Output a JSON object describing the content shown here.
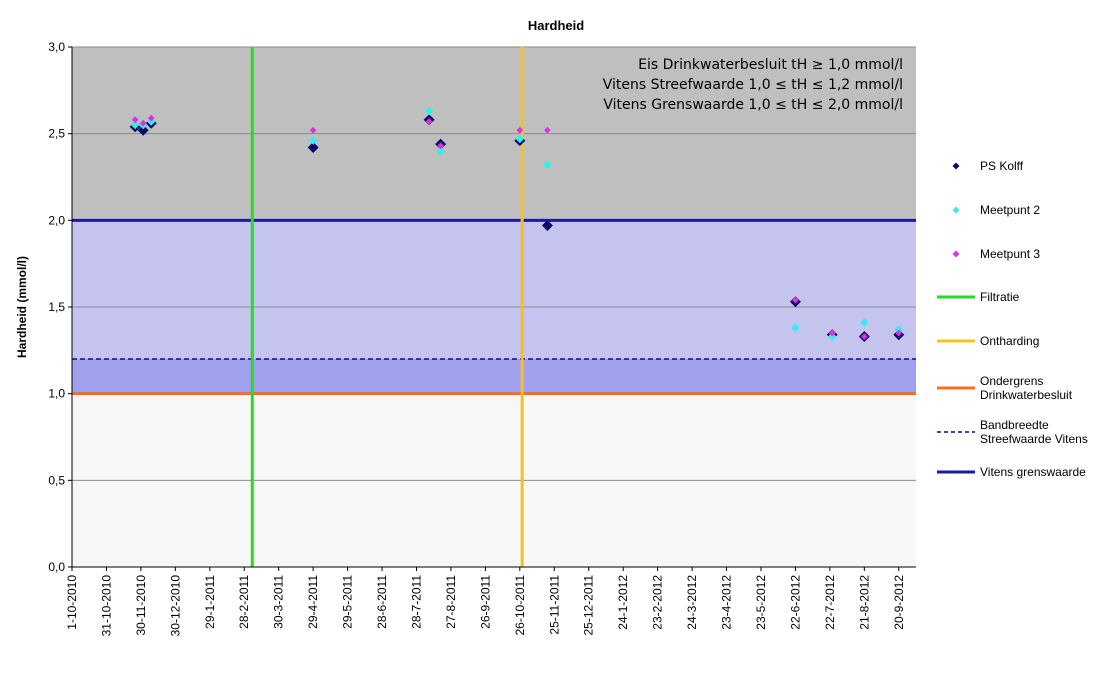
{
  "chart_data": {
    "type": "scatter",
    "title": "Hardheid",
    "xlabel": "",
    "ylabel": "Hardheid (mmol/l)",
    "ylim": [
      0,
      3
    ],
    "yticks": [
      "0,0",
      "0,5",
      "1,0",
      "1,5",
      "2,0",
      "2,5",
      "3,0"
    ],
    "xlim": [
      "2010-10-01",
      "2012-10-05"
    ],
    "xticks": [
      {
        "date": "2010-10-01",
        "label": "1-10-2010"
      },
      {
        "date": "2010-10-31",
        "label": "31-10-2010"
      },
      {
        "date": "2010-11-30",
        "label": "30-11-2010"
      },
      {
        "date": "2010-12-30",
        "label": "30-12-2010"
      },
      {
        "date": "2011-01-29",
        "label": "29-1-2011"
      },
      {
        "date": "2011-02-28",
        "label": "28-2-2011"
      },
      {
        "date": "2011-03-30",
        "label": "30-3-2011"
      },
      {
        "date": "2011-04-29",
        "label": "29-4-2011"
      },
      {
        "date": "2011-05-29",
        "label": "29-5-2011"
      },
      {
        "date": "2011-06-28",
        "label": "28-6-2011"
      },
      {
        "date": "2011-07-28",
        "label": "28-7-2011"
      },
      {
        "date": "2011-08-27",
        "label": "27-8-2011"
      },
      {
        "date": "2011-09-26",
        "label": "26-9-2011"
      },
      {
        "date": "2011-10-26",
        "label": "26-10-2011"
      },
      {
        "date": "2011-11-25",
        "label": "25-11-2011"
      },
      {
        "date": "2011-12-25",
        "label": "25-12-2011"
      },
      {
        "date": "2012-01-24",
        "label": "24-1-2012"
      },
      {
        "date": "2012-02-23",
        "label": "23-2-2012"
      },
      {
        "date": "2012-03-24",
        "label": "24-3-2012"
      },
      {
        "date": "2012-04-23",
        "label": "23-4-2012"
      },
      {
        "date": "2012-05-23",
        "label": "23-5-2012"
      },
      {
        "date": "2012-06-22",
        "label": "22-6-2012"
      },
      {
        "date": "2012-07-22",
        "label": "22-7-2012"
      },
      {
        "date": "2012-08-21",
        "label": "21-8-2012"
      },
      {
        "date": "2012-09-20",
        "label": "20-9-2012"
      }
    ],
    "grid": true,
    "bands": [
      {
        "from": 2.0,
        "to": 3.0,
        "color": "#bfbfbf"
      },
      {
        "from": 1.2,
        "to": 2.0,
        "color": "#c4c4ef"
      },
      {
        "from": 1.0,
        "to": 1.2,
        "color": "#a0a0ee"
      },
      {
        "from": 0.0,
        "to": 1.0,
        "color": "#f7f7f7"
      }
    ],
    "series": [
      {
        "name": "PS Kolff",
        "kind": "marker",
        "color": "#0c0c66",
        "points": [
          {
            "x": "2010-11-25",
            "y": 2.54
          },
          {
            "x": "2010-12-02",
            "y": 2.52
          },
          {
            "x": "2010-12-09",
            "y": 2.56
          },
          {
            "x": "2011-04-29",
            "y": 2.42
          },
          {
            "x": "2011-08-08",
            "y": 2.58
          },
          {
            "x": "2011-08-18",
            "y": 2.44
          },
          {
            "x": "2011-10-26",
            "y": 2.46
          },
          {
            "x": "2011-11-19",
            "y": 1.97
          },
          {
            "x": "2012-06-22",
            "y": 1.53
          },
          {
            "x": "2012-07-24",
            "y": 1.34
          },
          {
            "x": "2012-08-21",
            "y": 1.33
          },
          {
            "x": "2012-09-20",
            "y": 1.34
          }
        ]
      },
      {
        "name": "Meetpunt 2",
        "kind": "marker",
        "color": "#33eeee",
        "points": [
          {
            "x": "2010-11-25",
            "y": 2.55
          },
          {
            "x": "2010-12-02",
            "y": 2.55
          },
          {
            "x": "2010-12-09",
            "y": 2.57
          },
          {
            "x": "2011-04-29",
            "y": 2.46
          },
          {
            "x": "2011-08-08",
            "y": 2.63
          },
          {
            "x": "2011-08-18",
            "y": 2.4
          },
          {
            "x": "2011-10-26",
            "y": 2.47
          },
          {
            "x": "2011-11-19",
            "y": 2.32
          },
          {
            "x": "2012-06-22",
            "y": 1.38
          },
          {
            "x": "2012-07-24",
            "y": 1.33
          },
          {
            "x": "2012-08-21",
            "y": 1.41
          },
          {
            "x": "2012-09-20",
            "y": 1.37
          }
        ]
      },
      {
        "name": "Meetpunt 3",
        "kind": "marker",
        "color": "#dd33dd",
        "points": [
          {
            "x": "2010-11-25",
            "y": 2.58
          },
          {
            "x": "2010-12-02",
            "y": 2.56
          },
          {
            "x": "2010-12-09",
            "y": 2.59
          },
          {
            "x": "2011-04-29",
            "y": 2.52
          },
          {
            "x": "2011-08-08",
            "y": 2.57
          },
          {
            "x": "2011-08-18",
            "y": 2.43
          },
          {
            "x": "2011-10-26",
            "y": 2.52
          },
          {
            "x": "2011-11-19",
            "y": 2.52
          },
          {
            "x": "2012-06-22",
            "y": 1.54
          },
          {
            "x": "2012-07-24",
            "y": 1.35
          },
          {
            "x": "2012-08-21",
            "y": 1.33
          },
          {
            "x": "2012-09-20",
            "y": 1.35
          }
        ]
      },
      {
        "name": "Filtratie",
        "kind": "vline",
        "color": "#22dd22",
        "x": "2011-03-07"
      },
      {
        "name": "Ontharding",
        "kind": "vline",
        "color": "#f5c020",
        "x": "2011-10-28"
      },
      {
        "name": "Ondergrens Drinkwaterbesluit",
        "kind": "hline",
        "color": "#f07020",
        "y": 1.0
      },
      {
        "name": "Bandbreedte Streefwaarde Vitens",
        "kind": "hline-dashed",
        "color": "#0c0c80",
        "y": 1.2
      },
      {
        "name": "Vitens grenswaarde",
        "kind": "hline",
        "color": "#1a1aa0",
        "y": 2.0
      }
    ],
    "legend": {
      "placement": "right",
      "entries": [
        {
          "label_lines": [
            "PS Kolff"
          ],
          "series": 0
        },
        {
          "label_lines": [
            "Meetpunt 2"
          ],
          "series": 1
        },
        {
          "label_lines": [
            "Meetpunt 3"
          ],
          "series": 2
        },
        {
          "label_lines": [
            "Filtratie"
          ],
          "series": 3
        },
        {
          "label_lines": [
            "Ontharding"
          ],
          "series": 4
        },
        {
          "label_lines": [
            "Ondergrens",
            "Drinkwaterbesluit"
          ],
          "series": 5
        },
        {
          "label_lines": [
            "Bandbreedte",
            "Streefwaarde Vitens"
          ],
          "series": 6
        },
        {
          "label_lines": [
            "Vitens grenswaarde"
          ],
          "series": 7
        }
      ]
    },
    "annotations": [
      "Eis Drinkwaterbesluit tH ≥ 1,0 mmol/l",
      "Vitens  Streefwaarde 1,0 ≤ tH ≤ 1,2 mmol/l",
      "Vitens Grenswaarde 1,0 ≤ tH ≤ 2,0 mmol/l"
    ]
  }
}
